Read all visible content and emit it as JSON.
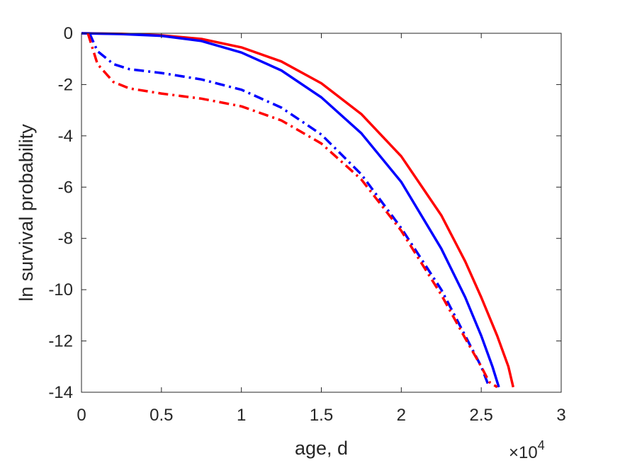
{
  "chart_data": {
    "type": "line",
    "title": "",
    "xlabel": "age, d",
    "ylabel": "ln survival probability",
    "x_multiplier_label": "×10",
    "x_multiplier_exponent": "4",
    "xlim": [
      0,
      30000
    ],
    "ylim": [
      -14,
      0
    ],
    "x_ticks": [
      0,
      5000,
      10000,
      15000,
      20000,
      25000,
      30000
    ],
    "x_tick_labels": [
      "0",
      "0.5",
      "1",
      "1.5",
      "2",
      "2.5",
      "3"
    ],
    "y_ticks": [
      0,
      -2,
      -4,
      -6,
      -8,
      -10,
      -12,
      -14
    ],
    "y_tick_labels": [
      "0",
      "-2",
      "-4",
      "-6",
      "-8",
      "-10",
      "-12",
      "-14"
    ],
    "grid": false,
    "legend": "none",
    "series": [
      {
        "color": "#ff0000",
        "style": "solid",
        "x": [
          0,
          2500,
          5000,
          7500,
          10000,
          12500,
          15000,
          17500,
          20000,
          22500,
          24000,
          25000,
          26000,
          26700,
          27000
        ],
        "y": [
          0,
          -0.02,
          -0.08,
          -0.22,
          -0.55,
          -1.1,
          -1.95,
          -3.15,
          -4.8,
          -7.1,
          -8.9,
          -10.3,
          -11.8,
          -13.0,
          -13.8
        ]
      },
      {
        "color": "#0000ff",
        "style": "solid",
        "x": [
          0,
          2500,
          5000,
          7500,
          10000,
          12500,
          15000,
          17500,
          20000,
          22500,
          24000,
          25000,
          25700,
          26100
        ],
        "y": [
          0,
          -0.03,
          -0.1,
          -0.3,
          -0.75,
          -1.45,
          -2.5,
          -3.9,
          -5.8,
          -8.4,
          -10.3,
          -11.8,
          -13.0,
          -13.8
        ]
      },
      {
        "color": "#0000ff",
        "style": "dashdot",
        "x": [
          500,
          1000,
          2000,
          3000,
          5000,
          7500,
          10000,
          12500,
          15000,
          17500,
          20000,
          22500,
          24000,
          25000,
          25500
        ],
        "y": [
          0,
          -0.7,
          -1.2,
          -1.4,
          -1.55,
          -1.8,
          -2.2,
          -2.9,
          -3.95,
          -5.5,
          -7.6,
          -10.0,
          -11.8,
          -13.0,
          -13.8
        ]
      },
      {
        "color": "#ff0000",
        "style": "dashdot",
        "x": [
          400,
          1000,
          2000,
          3000,
          5000,
          7500,
          10000,
          12500,
          15000,
          17500,
          20000,
          22500,
          24000,
          25000,
          25500,
          26000
        ],
        "y": [
          0,
          -1.2,
          -1.9,
          -2.15,
          -2.35,
          -2.55,
          -2.85,
          -3.4,
          -4.3,
          -5.7,
          -7.7,
          -10.2,
          -11.9,
          -13.0,
          -13.6,
          -13.8
        ]
      }
    ]
  }
}
